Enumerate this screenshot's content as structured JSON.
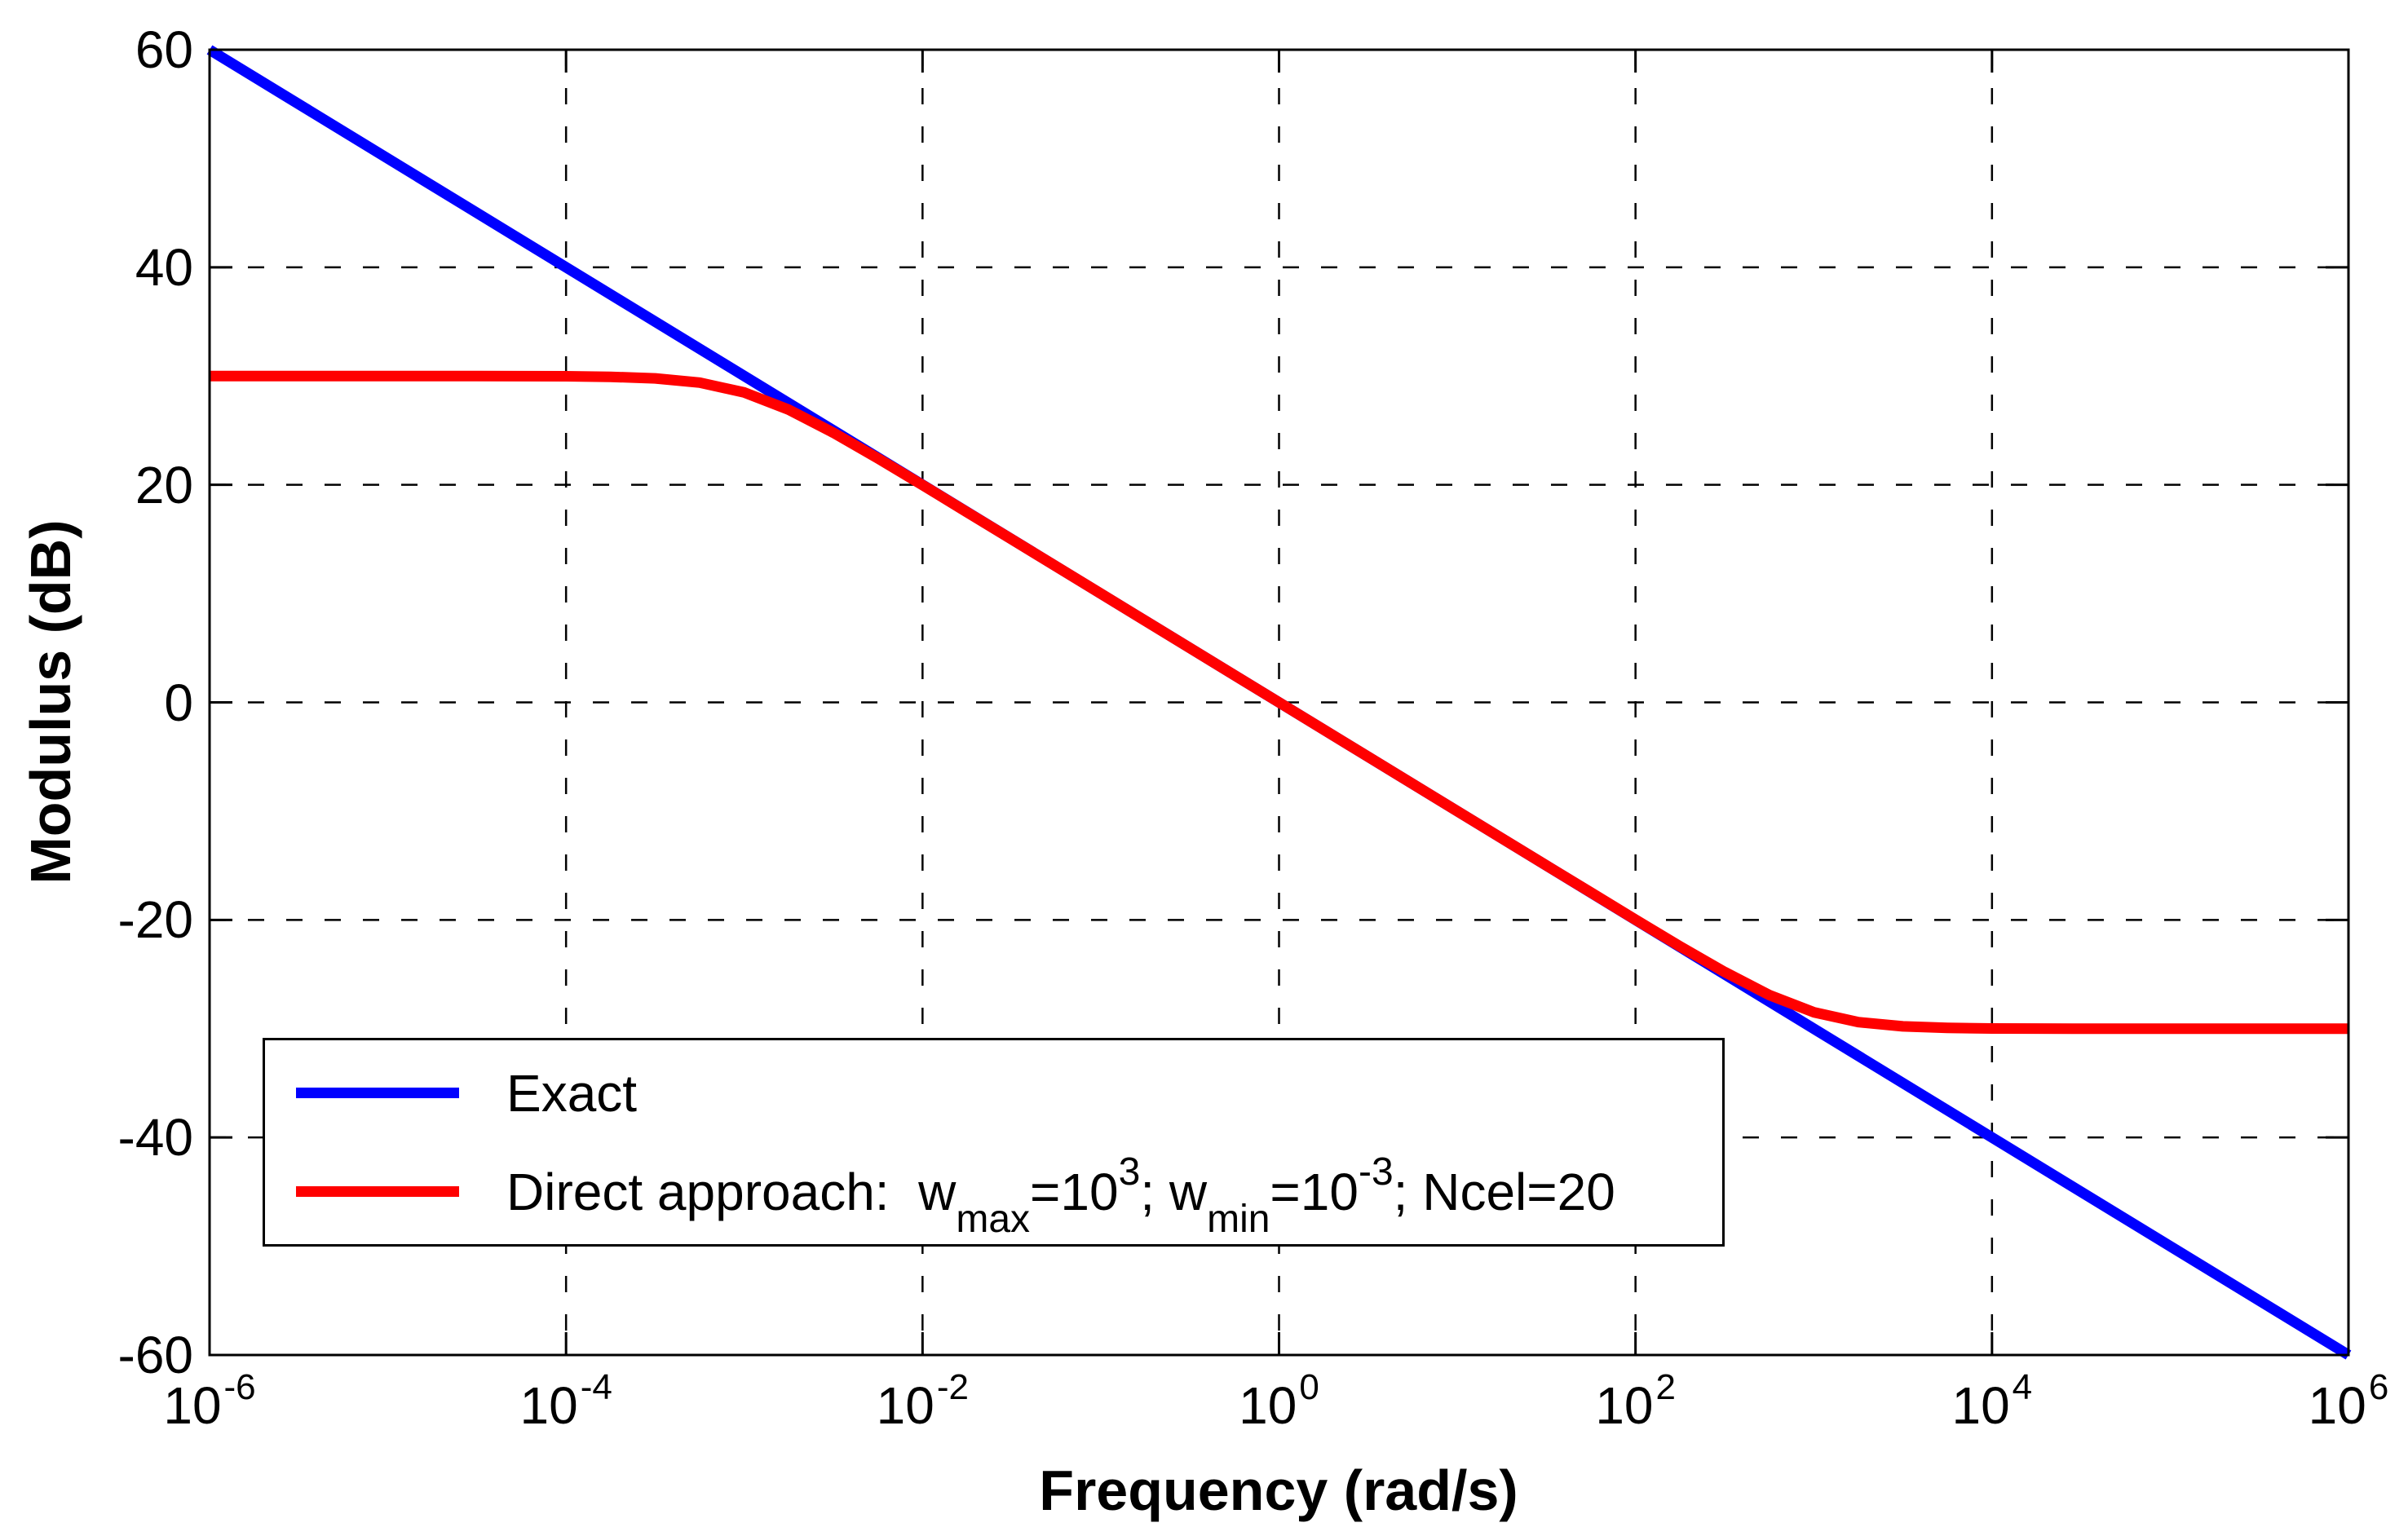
{
  "figure": {
    "xlabel": "Frequency (rad/s)",
    "ylabel": "Modulus (dB)"
  },
  "legend": {
    "entries": [
      {
        "label": "Exact",
        "color": "#0000ff"
      },
      {
        "color": "#ff0000",
        "parts": {
          "p1": "Direct approach:  w",
          "sub1": "max",
          "p2": "=10",
          "sup1": "3",
          "p3": "; w",
          "sub2": "min",
          "p4": "=10",
          "sup2": "-3",
          "p5": "; Ncel=20"
        }
      }
    ]
  },
  "chart_data": {
    "type": "line",
    "title": "",
    "xlabel": "Frequency (rad/s)",
    "ylabel": "Modulus (dB)",
    "x_scale": "log10",
    "xlim_log10": [
      -6,
      6
    ],
    "ylim": [
      -60,
      60
    ],
    "grid": true,
    "grid_style": "dashed",
    "legend_position": "bottom-left",
    "x_tick_base": "10",
    "x_tick_exponents": [
      "-6",
      "-4",
      "-2",
      "0",
      "2",
      "4",
      "6"
    ],
    "y_ticks": [
      "60",
      "40",
      "20",
      "0",
      "-20",
      "-40",
      "-60"
    ],
    "x_grid_exponents": [
      -4,
      -2,
      0,
      2,
      4
    ],
    "y_grid": [
      40,
      20,
      0,
      -20,
      -40
    ],
    "series": [
      {
        "name": "Exact",
        "color": "#0000ff",
        "slope_dB_per_decade": -10,
        "points_log10w_dB": [
          [
            -6,
            60
          ],
          [
            6,
            -60
          ]
        ]
      },
      {
        "name": "Direct approach: wmax=10^3; wmin=10^-3; Ncel=20",
        "color": "#ff0000",
        "params": {
          "w_min": 0.001,
          "w_max": 1000,
          "Ncel": 20,
          "low_plateau_dB": 30,
          "high_plateau_dB": -30
        },
        "points_log10w_dB": [
          [
            -6,
            30
          ],
          [
            -5.5,
            30
          ],
          [
            -5,
            30
          ],
          [
            -4.5,
            30
          ],
          [
            -4.25,
            29.99
          ],
          [
            -4,
            29.98
          ],
          [
            -3.75,
            29.93
          ],
          [
            -3.5,
            29.79
          ],
          [
            -3.25,
            29.4
          ],
          [
            -3,
            28.49
          ],
          [
            -2.75,
            26.9
          ],
          [
            -2.5,
            24.79
          ],
          [
            -2.25,
            22.43
          ],
          [
            -2,
            19.98
          ],
          [
            -1.75,
            17.48
          ],
          [
            -1.5,
            15.0
          ],
          [
            -1,
            10.0
          ],
          [
            -0.5,
            5.0
          ],
          [
            0,
            0.0
          ],
          [
            0.5,
            -5.0
          ],
          [
            1,
            -10.0
          ],
          [
            1.5,
            -15.0
          ],
          [
            1.75,
            -17.48
          ],
          [
            2,
            -19.98
          ],
          [
            2.25,
            -22.43
          ],
          [
            2.5,
            -24.79
          ],
          [
            2.75,
            -26.9
          ],
          [
            3,
            -28.49
          ],
          [
            3.25,
            -29.4
          ],
          [
            3.5,
            -29.79
          ],
          [
            3.75,
            -29.93
          ],
          [
            4,
            -29.98
          ],
          [
            4.25,
            -29.99
          ],
          [
            4.5,
            -30
          ],
          [
            5,
            -30
          ],
          [
            5.5,
            -30
          ],
          [
            6,
            -30
          ]
        ]
      }
    ]
  }
}
